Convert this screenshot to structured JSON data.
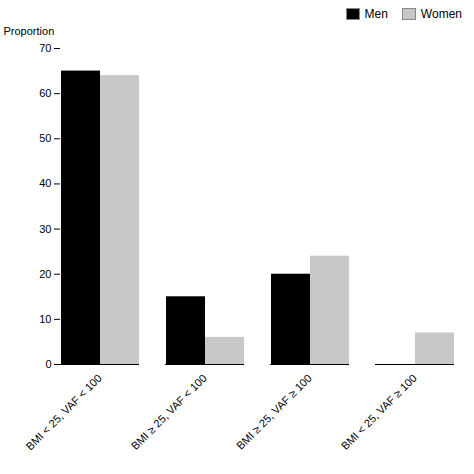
{
  "chart_data": {
    "type": "bar",
    "categories": [
      "BMI < 25, VAF < 100",
      "BMI ≥ 25, VAF < 100",
      "BMI ≥ 25, VAF ≥ 100",
      "BMI < 25, VAF ≥ 100"
    ],
    "series": [
      {
        "name": "Men",
        "color": "#000000",
        "values": [
          65,
          15,
          20,
          0
        ]
      },
      {
        "name": "Women",
        "color": "#c8c8c8",
        "values": [
          64,
          6,
          24,
          7
        ]
      }
    ],
    "ylabel": "Proportion",
    "ylim": [
      0,
      70
    ],
    "yticks": [
      0,
      10,
      20,
      30,
      40,
      50,
      60,
      70
    ],
    "grid": false,
    "legend": "upper right"
  }
}
